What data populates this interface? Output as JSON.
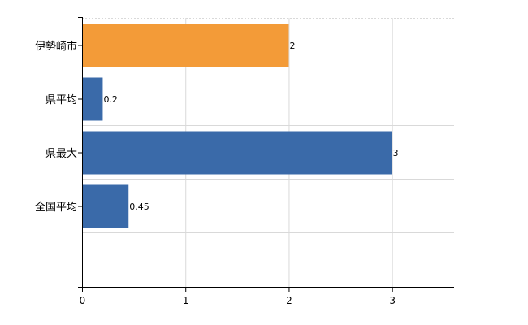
{
  "chart_data": {
    "type": "bar",
    "orientation": "horizontal",
    "categories": [
      "伊勢崎市",
      "県平均",
      "県最大",
      "全国平均"
    ],
    "values": [
      2,
      0.2,
      3,
      0.45
    ],
    "data_labels": [
      "2",
      "0.2",
      "3",
      "0.45"
    ],
    "bar_colors": [
      "#f39b38",
      "#3a6aa9",
      "#3a6aa9",
      "#3a6aa9"
    ],
    "xlim": [
      0,
      3.6
    ],
    "x_ticks": [
      0,
      1,
      2,
      3
    ],
    "x_tick_labels": [
      "0",
      "1",
      "2",
      "3"
    ],
    "grid": true,
    "legend": "none",
    "title": "",
    "xlabel": "",
    "ylabel": ""
  }
}
